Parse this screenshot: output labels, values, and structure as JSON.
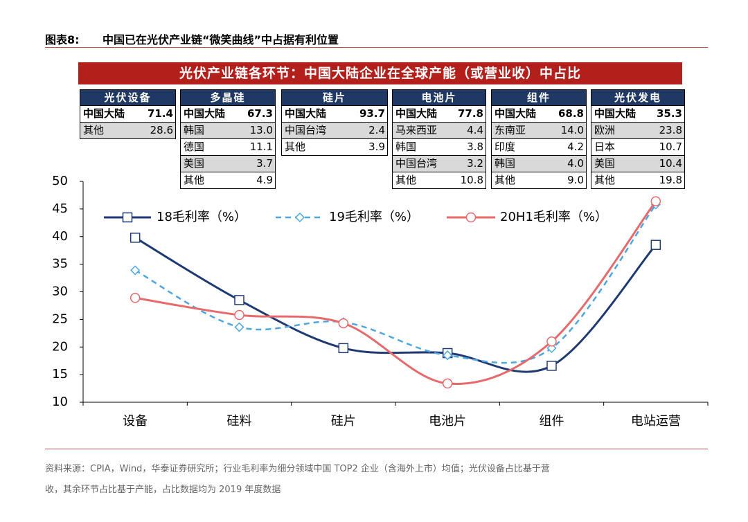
{
  "header": {
    "label": "图表8:",
    "title": "中国已在光伏产业链“微笑曲线”中占据有利位置"
  },
  "banner": "光伏产业链各环节：中国大陆企业在全球产能（或营业收）中占比",
  "tables": [
    {
      "title": "光伏设备",
      "rows": [
        [
          "中国大陆",
          "71.4"
        ],
        [
          "其他",
          "28.6"
        ]
      ]
    },
    {
      "title": "多晶硅",
      "rows": [
        [
          "中国大陆",
          "67.3"
        ],
        [
          "韩国",
          "13.0"
        ],
        [
          "德国",
          "11.1"
        ],
        [
          "美国",
          "3.7"
        ],
        [
          "其他",
          "4.9"
        ]
      ]
    },
    {
      "title": "硅片",
      "rows": [
        [
          "中国大陆",
          "93.7"
        ],
        [
          "中国台湾",
          "2.4"
        ],
        [
          "其他",
          "3.9"
        ]
      ]
    },
    {
      "title": "电池片",
      "rows": [
        [
          "中国大陆",
          "77.8"
        ],
        [
          "马来西亚",
          "4.4"
        ],
        [
          "韩国",
          "3.8"
        ],
        [
          "中国台湾",
          "3.2"
        ],
        [
          "其他",
          "10.8"
        ]
      ]
    },
    {
      "title": "组件",
      "rows": [
        [
          "中国大陆",
          "68.8"
        ],
        [
          "东南亚",
          "14.0"
        ],
        [
          "印度",
          "4.2"
        ],
        [
          "韩国",
          "4.0"
        ],
        [
          "其他",
          "9.0"
        ]
      ]
    },
    {
      "title": "光伏发电",
      "rows": [
        [
          "中国大陆",
          "35.3"
        ],
        [
          "欧洲",
          "23.8"
        ],
        [
          "日本",
          "10.7"
        ],
        [
          "美国",
          "10.4"
        ],
        [
          "其他",
          "19.8"
        ]
      ]
    }
  ],
  "chart_data": {
    "type": "line",
    "smooth": true,
    "categories": [
      "设备",
      "硅料",
      "硅片",
      "电池片",
      "组件",
      "电站运营"
    ],
    "series": [
      {
        "name": "18毛利率（%）",
        "color": "#1f3a73",
        "marker": "square",
        "dash": false,
        "values": [
          39.8,
          28.5,
          19.8,
          18.9,
          16.6,
          38.5
        ]
      },
      {
        "name": "19毛利率（%）",
        "color": "#4da6e0",
        "marker": "diamond",
        "dash": true,
        "values": [
          33.9,
          23.6,
          24.5,
          18.5,
          19.8,
          45.8
        ]
      },
      {
        "name": "20H1毛利率（%）",
        "color": "#e8696b",
        "marker": "circle",
        "dash": false,
        "values": [
          28.9,
          25.8,
          24.3,
          13.4,
          21.0,
          46.4
        ]
      }
    ],
    "ylim": [
      10,
      50
    ],
    "yticks": [
      10,
      15,
      20,
      25,
      30,
      35,
      40,
      45,
      50
    ],
    "grid": false,
    "legend": "top"
  },
  "source": [
    "资料来源：CPIA，Wind，华泰证券研究所；行业毛利率为细分领域中国 TOP2 企业（含海外上市）均值；光伏设备占比基于营",
    "收，其余环节占比基于产能，占比数据均为 2019 年度数据"
  ]
}
